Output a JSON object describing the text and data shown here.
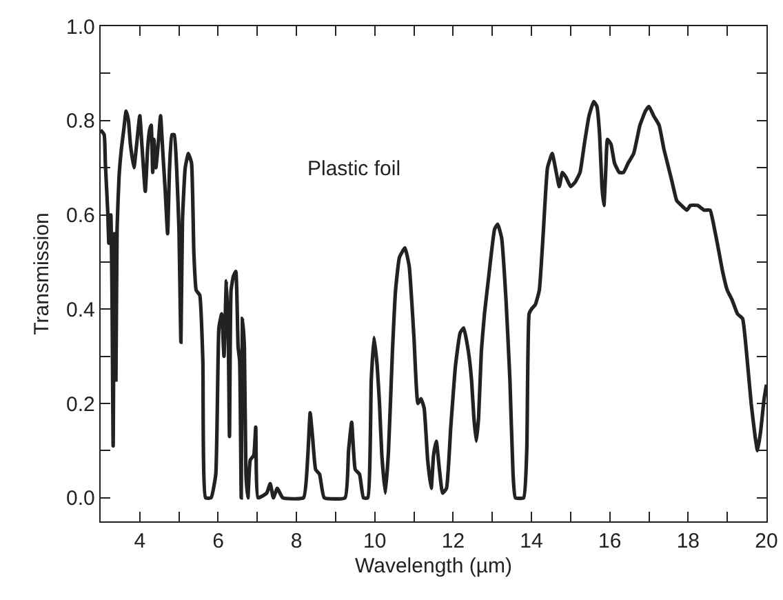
{
  "chart_data": {
    "type": "line",
    "xlabel": "Wavelength (µm)",
    "ylabel": "Transmission",
    "annotations": [
      "Plastic foil"
    ],
    "xlim": [
      3,
      20
    ],
    "ylim": [
      -0.05,
      1.0
    ],
    "xticks": [
      {
        "value": 3,
        "label": null
      },
      4,
      {
        "value": 5,
        "label": null
      },
      6,
      {
        "value": 7,
        "label": null
      },
      8,
      {
        "value": 9,
        "label": null
      },
      10,
      {
        "value": 11,
        "label": null
      },
      12,
      {
        "value": 13,
        "label": null
      },
      14,
      {
        "value": 15,
        "label": null
      },
      16,
      {
        "value": 17,
        "label": null
      },
      18,
      {
        "value": 19,
        "label": null
      },
      20
    ],
    "yticks": [
      {
        "value": 0,
        "label": "0.0"
      },
      {
        "value": 0.1,
        "label": null
      },
      {
        "value": 0.2,
        "label": "0.2"
      },
      {
        "value": 0.3,
        "label": null
      },
      {
        "value": 0.4,
        "label": "0.4"
      },
      {
        "value": 0.5,
        "label": null
      },
      {
        "value": 0.6,
        "label": "0.6"
      },
      {
        "value": 0.7,
        "label": null
      },
      {
        "value": 0.8,
        "label": "0.8"
      },
      {
        "value": 0.9,
        "label": null
      },
      {
        "value": 1.0,
        "label": "1.0"
      }
    ],
    "marker": "none",
    "line_style": "solid",
    "series": [
      {
        "color": "#222222",
        "x": [
          3.0,
          3.09,
          3.12,
          3.18,
          3.21,
          3.26,
          3.29,
          3.32,
          3.35,
          3.39,
          3.42,
          3.47,
          3.53,
          3.59,
          3.65,
          3.71,
          3.76,
          3.85,
          3.92,
          4.0,
          4.06,
          4.14,
          4.2,
          4.25,
          4.29,
          4.33,
          4.36,
          4.41,
          4.47,
          4.53,
          4.59,
          4.65,
          4.71,
          4.76,
          4.82,
          4.88,
          4.94,
          5.0,
          5.05,
          5.09,
          5.16,
          5.24,
          5.32,
          5.38,
          5.44,
          5.53,
          5.61,
          5.68,
          5.82,
          5.94,
          6.02,
          6.09,
          6.15,
          6.21,
          6.26,
          6.29,
          6.33,
          6.39,
          6.45,
          6.51,
          6.55,
          6.59,
          6.62,
          6.67,
          6.71,
          6.76,
          6.82,
          6.91,
          6.96,
          7.02,
          7.24,
          7.33,
          7.41,
          7.51,
          7.65,
          8.18,
          8.29,
          8.35,
          8.41,
          8.49,
          8.59,
          8.71,
          9.24,
          9.33,
          9.41,
          9.5,
          9.61,
          9.71,
          9.82,
          9.91,
          9.98,
          10.06,
          10.12,
          10.18,
          10.27,
          10.35,
          10.45,
          10.53,
          10.63,
          10.77,
          10.88,
          11.0,
          11.1,
          11.18,
          11.26,
          11.35,
          11.44,
          11.5,
          11.57,
          11.65,
          11.73,
          11.83,
          11.94,
          12.06,
          12.18,
          12.27,
          12.39,
          12.47,
          12.53,
          12.59,
          12.65,
          12.72,
          12.8,
          12.91,
          13.06,
          13.14,
          13.24,
          13.35,
          13.45,
          13.53,
          13.59,
          13.8,
          13.88,
          13.94,
          14.0,
          14.1,
          14.2,
          14.3,
          14.41,
          14.53,
          14.61,
          14.71,
          14.79,
          14.88,
          15.0,
          15.12,
          15.24,
          15.35,
          15.47,
          15.59,
          15.67,
          15.74,
          15.8,
          15.85,
          15.9,
          15.94,
          16.03,
          16.12,
          16.24,
          16.35,
          16.47,
          16.61,
          16.77,
          16.91,
          17.0,
          17.12,
          17.26,
          17.38,
          17.5,
          17.59,
          17.71,
          17.83,
          17.97,
          18.06,
          18.24,
          18.41,
          18.56,
          18.65,
          18.79,
          18.88,
          19.0,
          19.12,
          19.26,
          19.39,
          19.5,
          19.61,
          19.71,
          19.77,
          19.85,
          19.94,
          20.0
        ],
        "values": [
          0.78,
          0.77,
          0.71,
          0.61,
          0.54,
          0.6,
          0.44,
          0.11,
          0.56,
          0.25,
          0.57,
          0.68,
          0.74,
          0.78,
          0.82,
          0.8,
          0.75,
          0.7,
          0.75,
          0.81,
          0.74,
          0.65,
          0.74,
          0.78,
          0.79,
          0.69,
          0.76,
          0.7,
          0.75,
          0.81,
          0.73,
          0.65,
          0.56,
          0.7,
          0.77,
          0.77,
          0.7,
          0.57,
          0.33,
          0.59,
          0.7,
          0.73,
          0.71,
          0.52,
          0.44,
          0.43,
          0.29,
          0.0,
          0.0,
          0.05,
          0.36,
          0.39,
          0.3,
          0.46,
          0.34,
          0.13,
          0.44,
          0.47,
          0.48,
          0.32,
          0.29,
          0.0,
          0.38,
          0.32,
          0.05,
          0.0,
          0.08,
          0.09,
          0.15,
          0.0,
          0.01,
          0.03,
          0.0,
          0.02,
          0.0,
          0.0,
          0.09,
          0.18,
          0.13,
          0.06,
          0.05,
          0.0,
          0.0,
          0.1,
          0.16,
          0.06,
          0.05,
          0.0,
          0.0,
          0.25,
          0.34,
          0.28,
          0.2,
          0.09,
          0.01,
          0.1,
          0.31,
          0.44,
          0.51,
          0.53,
          0.49,
          0.34,
          0.2,
          0.21,
          0.19,
          0.08,
          0.02,
          0.09,
          0.12,
          0.06,
          0.01,
          0.02,
          0.15,
          0.28,
          0.35,
          0.36,
          0.31,
          0.25,
          0.17,
          0.12,
          0.17,
          0.31,
          0.39,
          0.47,
          0.57,
          0.58,
          0.55,
          0.42,
          0.25,
          0.05,
          0.0,
          0.0,
          0.1,
          0.39,
          0.4,
          0.41,
          0.44,
          0.56,
          0.7,
          0.73,
          0.7,
          0.66,
          0.69,
          0.68,
          0.66,
          0.67,
          0.69,
          0.75,
          0.81,
          0.84,
          0.83,
          0.77,
          0.66,
          0.62,
          0.7,
          0.76,
          0.75,
          0.71,
          0.69,
          0.69,
          0.71,
          0.73,
          0.79,
          0.82,
          0.83,
          0.81,
          0.79,
          0.74,
          0.7,
          0.67,
          0.63,
          0.62,
          0.61,
          0.62,
          0.62,
          0.61,
          0.61,
          0.58,
          0.52,
          0.48,
          0.44,
          0.42,
          0.39,
          0.38,
          0.3,
          0.2,
          0.13,
          0.1,
          0.14,
          0.21,
          0.24
        ]
      }
    ]
  }
}
